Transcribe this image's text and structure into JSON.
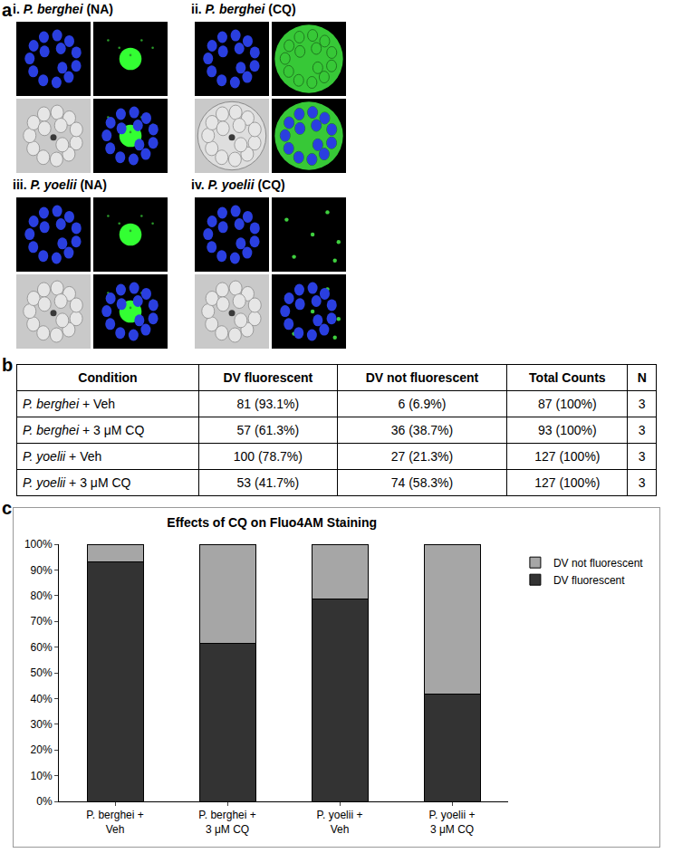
{
  "panel_labels": [
    "a",
    "b",
    "c"
  ],
  "panel_a": {
    "images": [
      {
        "title": "i. P. berghei (NA)"
      },
      {
        "title": "ii. P. berghei (CQ)"
      },
      {
        "title": "iii. P. yoelii (NA)"
      },
      {
        "title": "iv. P. yoelii (CQ)"
      }
    ]
  },
  "panel_b": {
    "header": [
      "Condition",
      "DV fluorescent",
      "DV not fluorescent",
      "Total Counts",
      "N"
    ],
    "rows": [
      [
        "P. berghei + Veh",
        "81 (93.1%)",
        "6 (6.9%)",
        "87 (100%)",
        "3"
      ],
      [
        "P. berghei + 3 μM CQ",
        "57 (61.3%)",
        "36 (38.7%)",
        "93 (100%)",
        "3"
      ],
      [
        "P. yoelii + Veh",
        "100 (78.7%)",
        "27 (21.3%)",
        "127 (100%)",
        "3"
      ],
      [
        "P. yoelii + 3 μM CQ",
        "53 (41.7%)",
        "74 (58.3%)",
        "127 (100%)",
        "3"
      ]
    ]
  },
  "chart_data": {
    "type": "bar",
    "title": "Effects of CQ on Fluo4AM Staining",
    "categories": [
      "P. berghei + Veh",
      "P. berghei + 3 μM CQ",
      "P. yoelii + Veh",
      "P. yoelii + 3 μM CQ"
    ],
    "series": [
      {
        "name": "DV fluorescent",
        "color": "#333333",
        "values": [
          93.1,
          61.3,
          78.7,
          41.7
        ]
      },
      {
        "name": "DV not fluorescent",
        "color": "#a6a6a6",
        "values": [
          6.9,
          38.7,
          21.3,
          58.3
        ]
      }
    ],
    "stacked": true,
    "ylim": [
      0,
      100
    ],
    "yticks": [
      {
        "value": 0,
        "label": "0%"
      },
      {
        "value": 10,
        "label": "10%"
      },
      {
        "value": 20,
        "label": "20%"
      },
      {
        "value": 30,
        "label": "30%"
      },
      {
        "value": 40,
        "label": "40%"
      },
      {
        "value": 50,
        "label": "50%"
      },
      {
        "value": 60,
        "label": "60%"
      },
      {
        "value": 70,
        "label": "70%"
      },
      {
        "value": 80,
        "label": "80%"
      },
      {
        "value": 90,
        "label": "90%"
      },
      {
        "value": 100,
        "label": "100%"
      }
    ],
    "grid": false,
    "legend": "right"
  }
}
